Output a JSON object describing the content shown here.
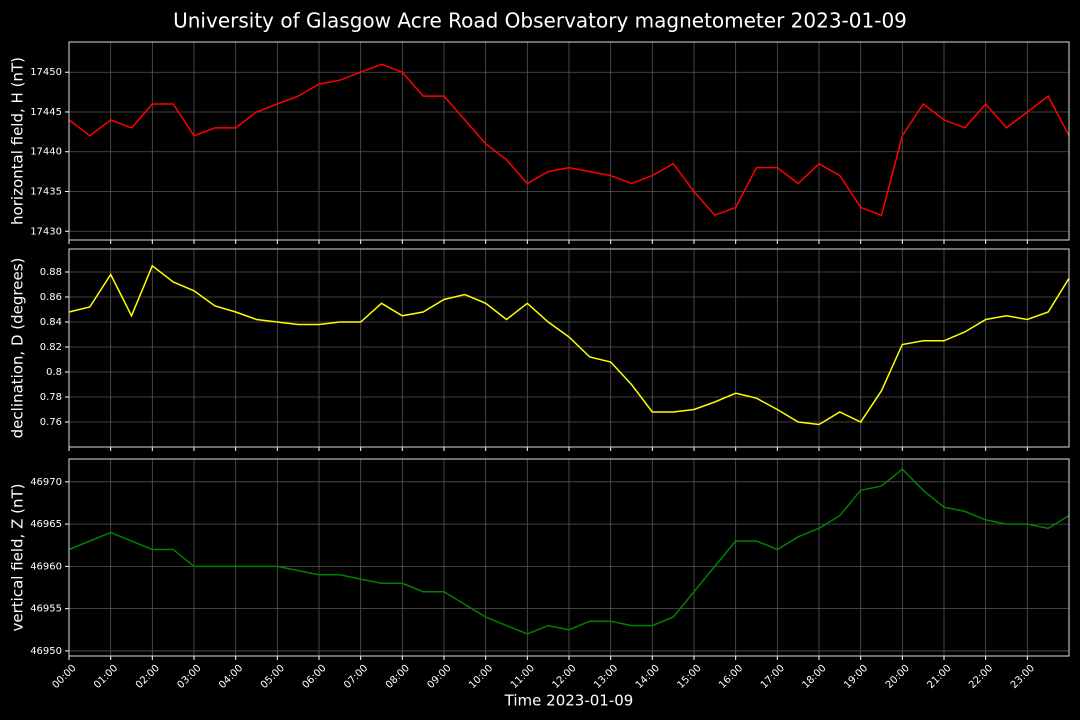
{
  "chart_data": [
    {
      "type": "line",
      "title": "University of Glasgow Acre Road Observatory magnetometer 2023-01-09",
      "ylabel": "horizontal field, H (nT)",
      "color": "#ff0000",
      "x": [
        0,
        0.5,
        1,
        1.5,
        2,
        2.5,
        3,
        3.5,
        4,
        4.5,
        5,
        5.5,
        6,
        6.5,
        7,
        7.5,
        8,
        8.5,
        9,
        9.5,
        10,
        10.5,
        11,
        11.5,
        12,
        12.5,
        13,
        13.5,
        14,
        14.5,
        15,
        15.5,
        16,
        16.5,
        17,
        17.5,
        18,
        18.5,
        19,
        19.5,
        20,
        20.5,
        21,
        21.5,
        22,
        22.5,
        23,
        23.5,
        24
      ],
      "values": [
        17444,
        17442,
        17444,
        17443,
        17446,
        17446,
        17442,
        17443,
        17443,
        17445,
        17446,
        17447,
        17448.5,
        17449,
        17450,
        17451,
        17450,
        17447,
        17447,
        17444,
        17441,
        17439,
        17436,
        17437.5,
        17438,
        17437.5,
        17437,
        17436,
        17437,
        17438.5,
        17435,
        17432,
        17433,
        17438,
        17438,
        17436,
        17438.5,
        17437,
        17433,
        17432,
        17442,
        17446,
        17444,
        17443,
        17446,
        17443,
        17445,
        17447,
        17442
      ],
      "xlim": [
        0,
        24
      ],
      "ylim": [
        17428.9,
        17453.8
      ],
      "yticks": [
        17430,
        17435,
        17440,
        17445,
        17450
      ],
      "grid": true
    },
    {
      "type": "line",
      "ylabel": "declination, D (degrees)",
      "color": "#ffff00",
      "x": [
        0,
        0.5,
        1,
        1.5,
        2,
        2.5,
        3,
        3.5,
        4,
        4.5,
        5,
        5.5,
        6,
        6.5,
        7,
        7.5,
        8,
        8.5,
        9,
        9.5,
        10,
        10.5,
        11,
        11.5,
        12,
        12.5,
        13,
        13.5,
        14,
        14.5,
        15,
        15.5,
        16,
        16.5,
        17,
        17.5,
        18,
        18.5,
        19,
        19.5,
        20,
        20.5,
        21,
        21.5,
        22,
        22.5,
        23,
        23.5,
        24
      ],
      "values": [
        0.848,
        0.852,
        0.878,
        0.845,
        0.885,
        0.872,
        0.865,
        0.853,
        0.848,
        0.842,
        0.84,
        0.838,
        0.838,
        0.84,
        0.84,
        0.855,
        0.845,
        0.848,
        0.858,
        0.862,
        0.855,
        0.842,
        0.855,
        0.84,
        0.828,
        0.812,
        0.808,
        0.79,
        0.768,
        0.768,
        0.77,
        0.776,
        0.783,
        0.779,
        0.77,
        0.76,
        0.758,
        0.768,
        0.76,
        0.785,
        0.822,
        0.825,
        0.825,
        0.832,
        0.842,
        0.845,
        0.842,
        0.848,
        0.875
      ],
      "xlim": [
        0,
        24
      ],
      "ylim": [
        0.74,
        0.8984
      ],
      "yticks": [
        0.76,
        0.78,
        0.8,
        0.82,
        0.84,
        0.86,
        0.88
      ],
      "grid": true
    },
    {
      "type": "line",
      "ylabel": "vertical field, Z (nT)",
      "xlabel": "Time 2023-01-09",
      "color": "#008000",
      "x": [
        0,
        0.5,
        1,
        1.5,
        2,
        2.5,
        3,
        3.5,
        4,
        4.5,
        5,
        5.5,
        6,
        6.5,
        7,
        7.5,
        8,
        8.5,
        9,
        9.5,
        10,
        10.5,
        11,
        11.5,
        12,
        12.5,
        13,
        13.5,
        14,
        14.5,
        15,
        15.5,
        16,
        16.5,
        17,
        17.5,
        18,
        18.5,
        19,
        19.5,
        20,
        20.5,
        21,
        21.5,
        22,
        22.5,
        23,
        23.5,
        24
      ],
      "values": [
        46962,
        46963,
        46964,
        46963,
        46962,
        46962,
        46960,
        46960,
        46960,
        46960,
        46960,
        46959.5,
        46959,
        46959,
        46958.5,
        46958,
        46958,
        46957,
        46957,
        46955.5,
        46954,
        46953,
        46952,
        46953,
        46952.5,
        46953.5,
        46953.5,
        46953,
        46953,
        46954,
        46957,
        46960,
        46963,
        46963,
        46962,
        46963.5,
        46964.5,
        46966,
        46969,
        46969.5,
        46971.5,
        46969,
        46967,
        46966.5,
        46965.5,
        46965,
        46965,
        46964.5,
        46966
      ],
      "xlim": [
        0,
        24
      ],
      "ylim": [
        46949.4,
        46972.7
      ],
      "yticks": [
        46950,
        46955,
        46960,
        46965,
        46970
      ],
      "grid": true,
      "xticks": [
        {
          "value": 0,
          "label": "00:00"
        },
        {
          "value": 1,
          "label": "01:00"
        },
        {
          "value": 2,
          "label": "02:00"
        },
        {
          "value": 3,
          "label": "03:00"
        },
        {
          "value": 4,
          "label": "04:00"
        },
        {
          "value": 5,
          "label": "05:00"
        },
        {
          "value": 6,
          "label": "06:00"
        },
        {
          "value": 7,
          "label": "07:00"
        },
        {
          "value": 8,
          "label": "08:00"
        },
        {
          "value": 9,
          "label": "09:00"
        },
        {
          "value": 10,
          "label": "10:00"
        },
        {
          "value": 11,
          "label": "11:00"
        },
        {
          "value": 12,
          "label": "12:00"
        },
        {
          "value": 13,
          "label": "13:00"
        },
        {
          "value": 14,
          "label": "14:00"
        },
        {
          "value": 15,
          "label": "15:00"
        },
        {
          "value": 16,
          "label": "16:00"
        },
        {
          "value": 17,
          "label": "17:00"
        },
        {
          "value": 18,
          "label": "18:00"
        },
        {
          "value": 19,
          "label": "19:00"
        },
        {
          "value": 20,
          "label": "20:00"
        },
        {
          "value": 21,
          "label": "21:00"
        },
        {
          "value": 22,
          "label": "22:00"
        },
        {
          "value": 23,
          "label": "23:00"
        }
      ]
    }
  ]
}
